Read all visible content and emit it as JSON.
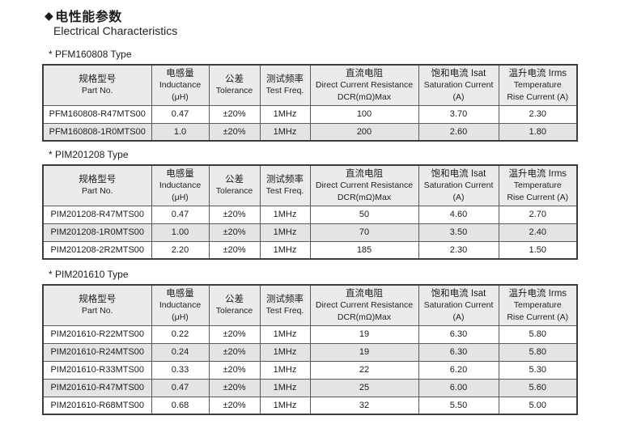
{
  "header": {
    "diamond": "◆",
    "title_cn": "电性能参数",
    "title_en": "Electrical Characteristics"
  },
  "columns": [
    {
      "key": "part_no",
      "lines": [
        "规格型号",
        "Part No."
      ]
    },
    {
      "key": "inductance",
      "lines": [
        "电感量",
        "Inductance",
        "(μH)"
      ]
    },
    {
      "key": "tolerance",
      "lines": [
        "公差",
        "Tolerance"
      ]
    },
    {
      "key": "test_freq",
      "lines": [
        "测试频率",
        "Test Freq."
      ]
    },
    {
      "key": "dcr",
      "lines": [
        "直流电阻",
        "Direct Current Resistance",
        "DCR(mΩ)Max"
      ]
    },
    {
      "key": "isat",
      "lines": [
        "饱和电流 Isat",
        "Saturation Current",
        "(A)"
      ]
    },
    {
      "key": "irms",
      "lines": [
        "温升电流 Irms",
        "Temperature",
        "Rise Current (A)"
      ]
    }
  ],
  "tables": [
    {
      "caption": "* PFM160808 Type",
      "rows": [
        [
          "PFM160808-R47MTS00",
          "0.47",
          "±20%",
          "1MHz",
          "100",
          "3.70",
          "2.30"
        ],
        [
          "PFM160808-1R0MTS00",
          "1.0",
          "±20%",
          "1MHz",
          "200",
          "2.60",
          "1.80"
        ]
      ]
    },
    {
      "caption": "* PIM201208 Type",
      "rows": [
        [
          "PIM201208-R47MTS00",
          "0.47",
          "±20%",
          "1MHz",
          "50",
          "4.60",
          "2.70"
        ],
        [
          "PIM201208-1R0MTS00",
          "1.00",
          "±20%",
          "1MHz",
          "70",
          "3.50",
          "2.40"
        ],
        [
          "PIM201208-2R2MTS00",
          "2.20",
          "±20%",
          "1MHz",
          "185",
          "2.30",
          "1.50"
        ]
      ]
    },
    {
      "caption": "* PIM201610 Type",
      "rows": [
        [
          "PIM201610-R22MTS00",
          "0.22",
          "±20%",
          "1MHz",
          "19",
          "6.30",
          "5.80"
        ],
        [
          "PIM201610-R24MTS00",
          "0.24",
          "±20%",
          "1MHz",
          "19",
          "6.30",
          "5.80"
        ],
        [
          "PIM201610-R33MTS00",
          "0.33",
          "±20%",
          "1MHz",
          "22",
          "6.20",
          "5.30"
        ],
        [
          "PIM201610-R47MTS00",
          "0.47",
          "±20%",
          "1MHz",
          "25",
          "6.00",
          "5.60"
        ],
        [
          "PIM201610-R68MTS00",
          "0.68",
          "±20%",
          "1MHz",
          "32",
          "5.50",
          "5.00"
        ]
      ]
    }
  ]
}
